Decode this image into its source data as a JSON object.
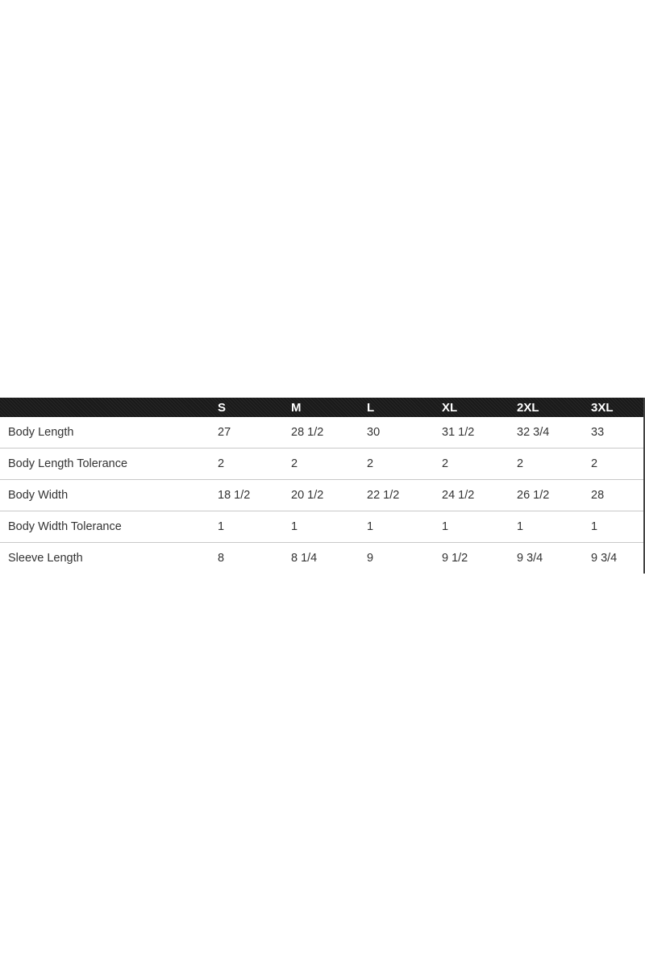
{
  "size_chart": {
    "headers": [
      "",
      "S",
      "M",
      "L",
      "XL",
      "2XL",
      "3XL"
    ],
    "rows": [
      [
        "Body Length",
        "27",
        "28 1/2",
        "30",
        "31 1/2",
        "32 3/4",
        "33"
      ],
      [
        "Body Length Tolerance",
        "2",
        "2",
        "2",
        "2",
        "2",
        "2"
      ],
      [
        "Body Width",
        "18 1/2",
        "20 1/2",
        "22 1/2",
        "24 1/2",
        "26 1/2",
        "28"
      ],
      [
        "Body Width Tolerance",
        "1",
        "1",
        "1",
        "1",
        "1",
        "1"
      ],
      [
        "Sleeve Length",
        "8",
        "8 1/4",
        "9",
        "9 1/2",
        "9 3/4",
        "9 3/4"
      ]
    ]
  },
  "colors": {
    "header_bg": "#1e1e1e",
    "header_text": "#ffffff",
    "divider": "#c8c8c8"
  }
}
